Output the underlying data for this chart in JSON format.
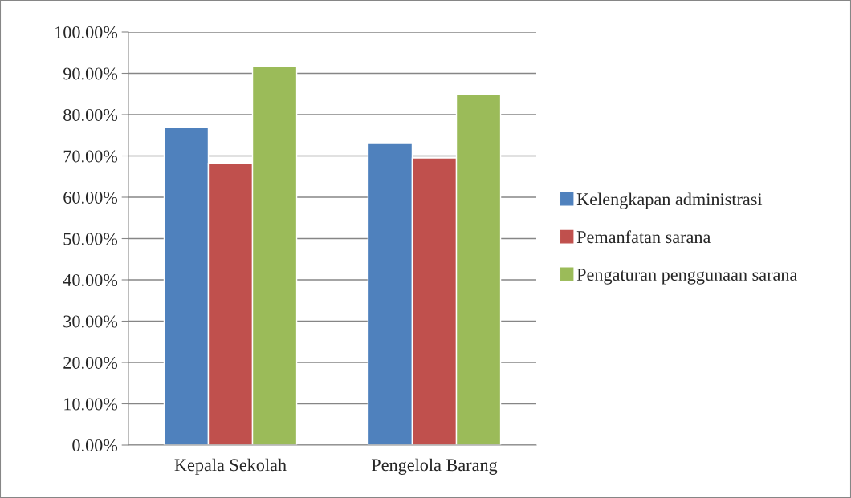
{
  "chart_data": {
    "type": "bar",
    "categories": [
      "Kepala Sekolah",
      "Pengelola Barang"
    ],
    "series": [
      {
        "name": "Kelengkapan administrasi",
        "color": "#4f81bd",
        "values": [
          76.9,
          73.2
        ]
      },
      {
        "name": "Pemanfatan sarana",
        "color": "#c0504d",
        "values": [
          68.2,
          69.5
        ]
      },
      {
        "name": "Pengaturan penggunaan sarana",
        "color": "#9bbb59",
        "values": [
          91.7,
          84.9
        ]
      }
    ],
    "ylim": [
      0,
      100
    ],
    "yticks": [
      {
        "value": 0,
        "label": "0.00%"
      },
      {
        "value": 10,
        "label": "10.00%"
      },
      {
        "value": 20,
        "label": "20.00%"
      },
      {
        "value": 30,
        "label": "30.00%"
      },
      {
        "value": 40,
        "label": "40.00%"
      },
      {
        "value": 50,
        "label": "50.00%"
      },
      {
        "value": 60,
        "label": "60.00%"
      },
      {
        "value": 70,
        "label": "70.00%"
      },
      {
        "value": 80,
        "label": "80.00%"
      },
      {
        "value": 90,
        "label": "90.00%"
      },
      {
        "value": 100,
        "label": "100.00%"
      }
    ],
    "grid": "y",
    "legend": "right"
  }
}
